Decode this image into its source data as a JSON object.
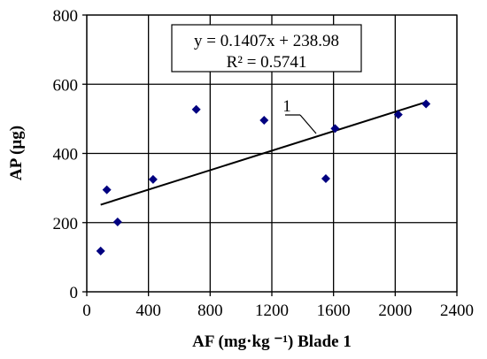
{
  "chart_data": {
    "type": "scatter",
    "title": "",
    "xlabel": "AF (mg·kg ⁻¹) Blade 1",
    "ylabel": "AP (µg)",
    "xlim": [
      0,
      2400
    ],
    "ylim": [
      0,
      800
    ],
    "x_ticks": [
      "0",
      "400",
      "800",
      "1200",
      "1600",
      "2000",
      "2400"
    ],
    "y_ticks": [
      "0",
      "200",
      "400",
      "600",
      "800"
    ],
    "grid": true,
    "point_color": "#000080",
    "series": [
      {
        "x": [
          90,
          130,
          200,
          430,
          710,
          1150,
          1550,
          1610,
          2020,
          2200
        ],
        "y": [
          118,
          295,
          202,
          325,
          527,
          496,
          327,
          472,
          512,
          543
        ]
      }
    ],
    "trendline": {
      "slope": 0.1407,
      "intercept": 238.98,
      "x_range": [
        90,
        2200
      ],
      "equation": "y = 0.1407x + 238.98",
      "r_squared": "R² = 0.5741",
      "label": "1"
    }
  }
}
